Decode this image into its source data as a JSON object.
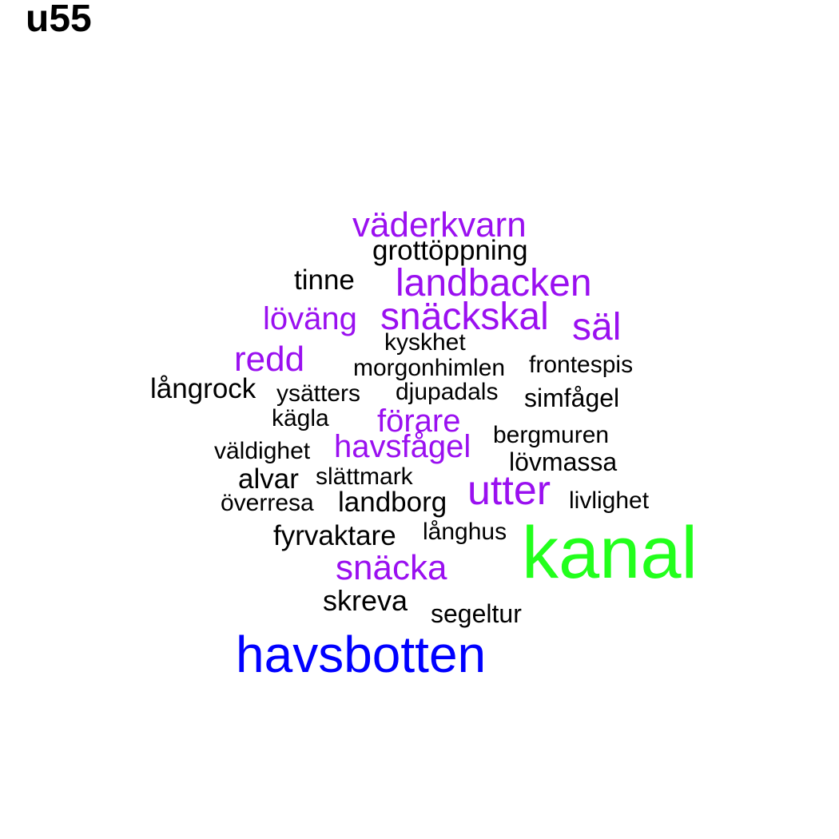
{
  "title": "u55",
  "colors": {
    "black": "#000000",
    "purple": "#9a10f0",
    "blue": "#0000ff",
    "green": "#22ff1c"
  },
  "words": [
    {
      "text": "väderkvarn",
      "color": "purple"
    },
    {
      "text": "grottöppning",
      "color": "black"
    },
    {
      "text": "tinne",
      "color": "black"
    },
    {
      "text": "landbacken",
      "color": "purple"
    },
    {
      "text": "löväng",
      "color": "purple"
    },
    {
      "text": "snäckskal",
      "color": "purple"
    },
    {
      "text": "säl",
      "color": "purple"
    },
    {
      "text": "kyskhet",
      "color": "black"
    },
    {
      "text": "redd",
      "color": "purple"
    },
    {
      "text": "morgonhimlen",
      "color": "black"
    },
    {
      "text": "frontespis",
      "color": "black"
    },
    {
      "text": "långrock",
      "color": "black"
    },
    {
      "text": "ysätters",
      "color": "black"
    },
    {
      "text": "djupadals",
      "color": "black"
    },
    {
      "text": "simfågel",
      "color": "black"
    },
    {
      "text": "kägla",
      "color": "black"
    },
    {
      "text": "förare",
      "color": "purple"
    },
    {
      "text": "bergmuren",
      "color": "black"
    },
    {
      "text": "väldighet",
      "color": "black"
    },
    {
      "text": "havsfågel",
      "color": "purple"
    },
    {
      "text": "lövmassa",
      "color": "black"
    },
    {
      "text": "alvar",
      "color": "black"
    },
    {
      "text": "slättmark",
      "color": "black"
    },
    {
      "text": "utter",
      "color": "purple"
    },
    {
      "text": "överresa",
      "color": "black"
    },
    {
      "text": "landborg",
      "color": "black"
    },
    {
      "text": "livlighet",
      "color": "black"
    },
    {
      "text": "fyrvaktare",
      "color": "black"
    },
    {
      "text": "långhus",
      "color": "black"
    },
    {
      "text": "kanal",
      "color": "green"
    },
    {
      "text": "snäcka",
      "color": "purple"
    },
    {
      "text": "skreva",
      "color": "black"
    },
    {
      "text": "segeltur",
      "color": "black"
    },
    {
      "text": "havsbotten",
      "color": "blue"
    }
  ]
}
